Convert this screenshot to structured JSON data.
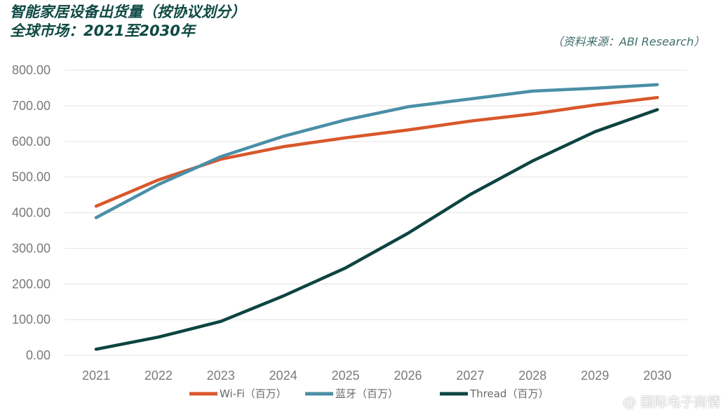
{
  "title": {
    "line1": "智能家居设备出货量（按协议划分）",
    "line2": "全球市场：2021至2030年"
  },
  "source": "（资料来源：ABI Research）",
  "watermark": "@ 国际电子商情",
  "colors": {
    "wifi": "#d9572b",
    "bluetooth": "#4a8fa6",
    "thread": "#0d4440",
    "grid": "#e3e3e3",
    "axis_text": "#7a7a7a"
  },
  "chart_data": {
    "type": "line",
    "title": "智能家居设备出货量（按协议划分） 全球市场：2021至2030年",
    "xlabel": "",
    "ylabel": "",
    "x": [
      "2021",
      "2022",
      "2023",
      "2024",
      "2025",
      "2026",
      "2027",
      "2028",
      "2029",
      "2030"
    ],
    "ylim": [
      0,
      800
    ],
    "yticks": [
      "0.00",
      "100.00",
      "200.00",
      "300.00",
      "400.00",
      "500.00",
      "600.00",
      "700.00",
      "800.00"
    ],
    "grid": true,
    "legend_position": "bottom",
    "series": [
      {
        "name": "Wi-Fi（百万）",
        "color": "#d9572b",
        "values": [
          418,
          492,
          550,
          585,
          610,
          632,
          657,
          677,
          702,
          723
        ]
      },
      {
        "name": "蓝牙（百万）",
        "color": "#4a8fa6",
        "values": [
          386,
          479,
          557,
          614,
          660,
          697,
          719,
          741,
          749,
          759
        ]
      },
      {
        "name": "Thread（百万）",
        "color": "#0d4440",
        "values": [
          17,
          51,
          95,
          166,
          245,
          342,
          451,
          545,
          627,
          689
        ]
      }
    ]
  }
}
